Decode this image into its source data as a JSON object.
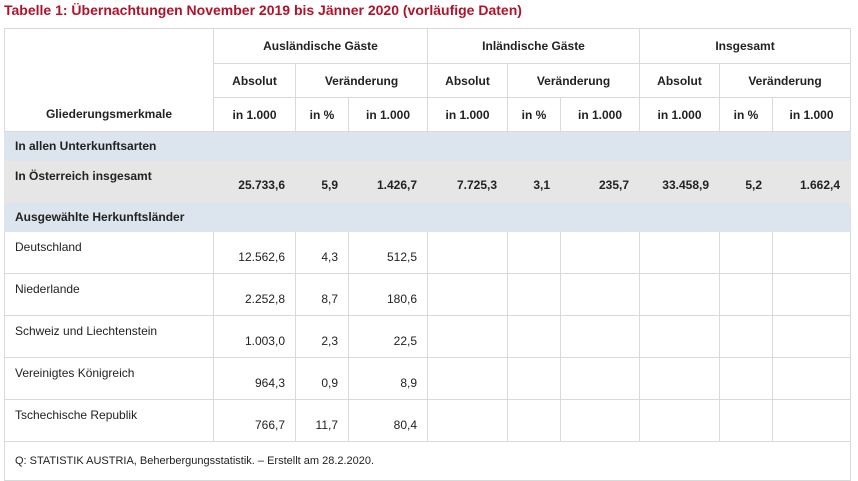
{
  "title": "Tabelle 1: Übernachtungen November 2019 bis Jänner 2020 (vorläufige Daten)",
  "header": {
    "group_label": "Gliederungsmerkmale",
    "groups": [
      "Ausländische Gäste",
      "Inländische Gäste",
      "Insgesamt"
    ],
    "sub": [
      "Absolut",
      "Veränderung"
    ],
    "units": [
      "in 1.000",
      "in %",
      "in 1.000"
    ]
  },
  "section1": "In allen Unterkunftsarten",
  "total": {
    "label": "In Österreich insgesamt",
    "values": [
      "25.733,6",
      "5,9",
      "1.426,7",
      "7.725,3",
      "3,1",
      "235,7",
      "33.458,9",
      "5,2",
      "1.662,4"
    ]
  },
  "section2": "Ausgewählte Herkunftsländer",
  "rows": [
    {
      "label": "Deutschland",
      "values": [
        "12.562,6",
        "4,3",
        "512,5"
      ]
    },
    {
      "label": "Niederlande",
      "values": [
        "2.252,8",
        "8,7",
        "180,6"
      ]
    },
    {
      "label": "Schweiz und Liechtenstein",
      "values": [
        "1.003,0",
        "2,3",
        "22,5"
      ]
    },
    {
      "label": "Vereinigtes Königreich",
      "values": [
        "964,3",
        "0,9",
        "8,9"
      ]
    },
    {
      "label": "Tschechische Republik",
      "values": [
        "766,7",
        "11,7",
        "80,4"
      ]
    }
  ],
  "footnote": "Q: STATISTIK AUSTRIA, Beherbergungsstatistik. – Erstellt am 28.2.2020."
}
